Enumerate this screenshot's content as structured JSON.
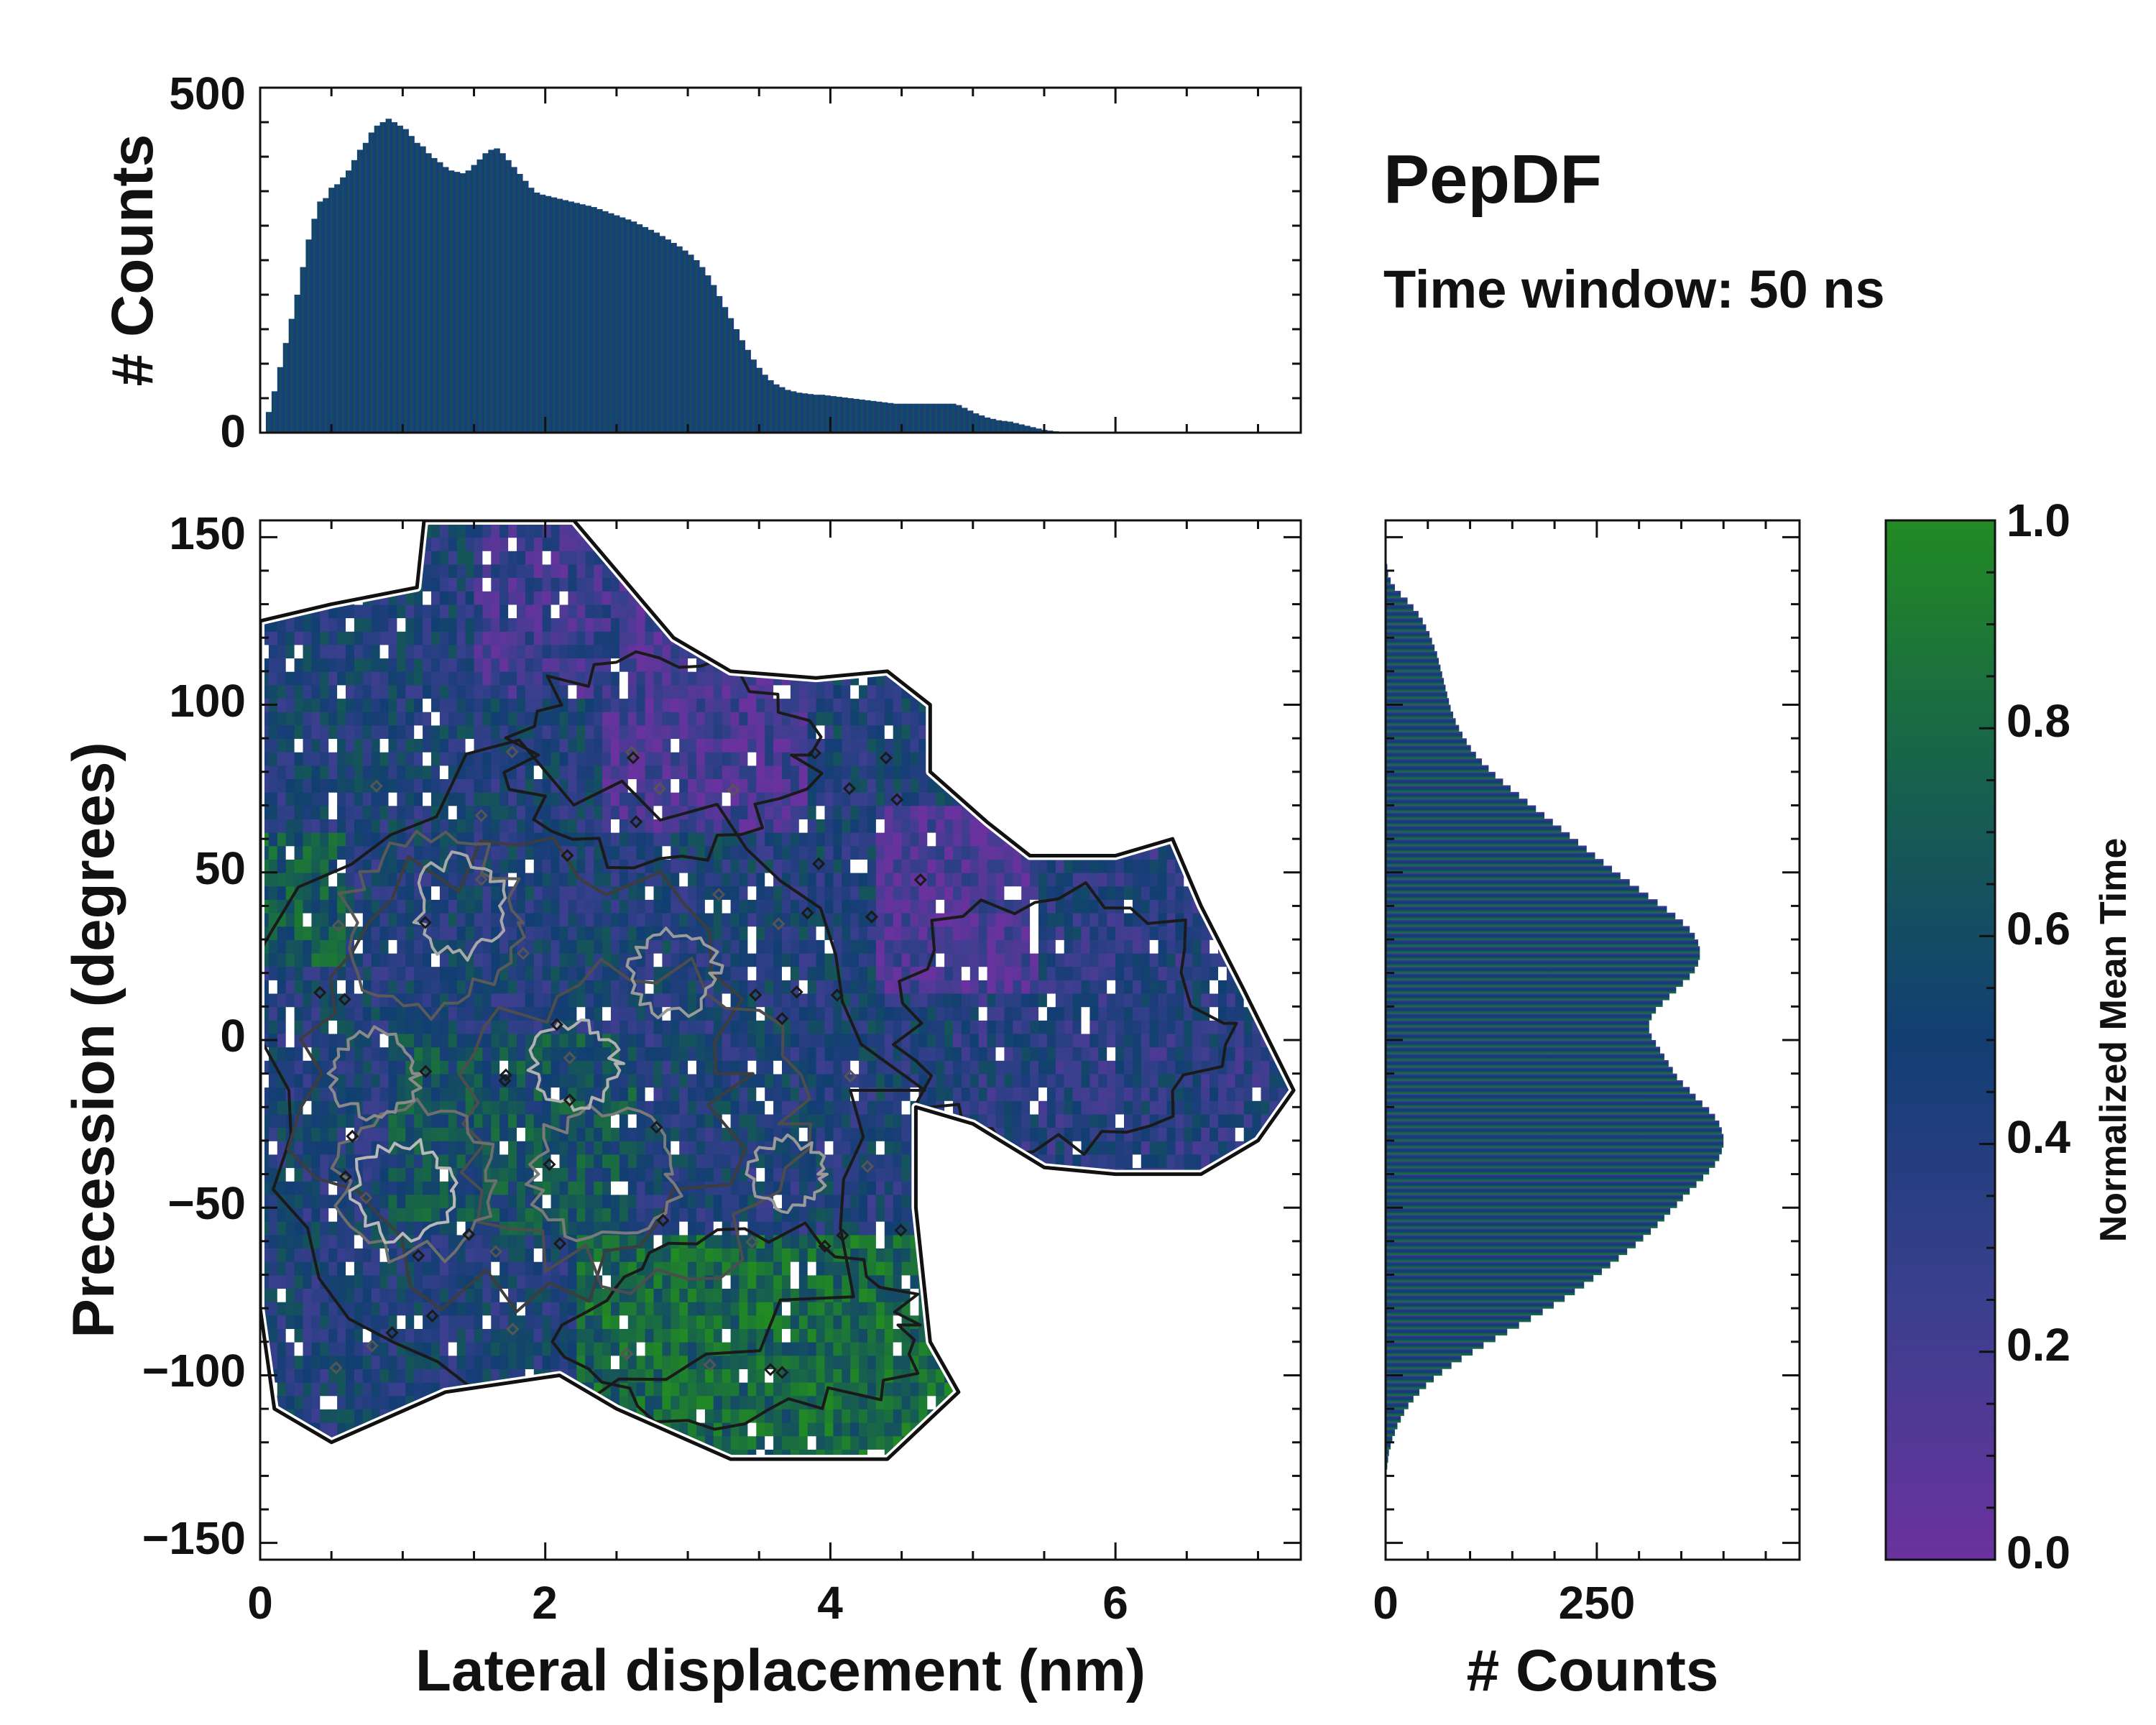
{
  "chart_data": {
    "type": "heatmap",
    "title": "PepDF",
    "subtitle": "Time window: 50 ns",
    "main": {
      "xlabel": "Lateral displacement (nm)",
      "ylabel": "Precession (degrees)",
      "xlim": [
        0,
        7.3
      ],
      "ylim": [
        -155,
        155
      ],
      "xticks": [
        0,
        2,
        4,
        6
      ],
      "yticks": [
        -150,
        -100,
        -50,
        0,
        50,
        100,
        150
      ],
      "xtick_labels": [
        "0",
        "2",
        "4",
        "6"
      ],
      "ytick_labels": [
        "−150",
        "−100",
        "−50",
        "0",
        "50",
        "100",
        "150"
      ],
      "region": [
        [
          0,
          125
        ],
        [
          0.5,
          130
        ],
        [
          1.1,
          135
        ],
        [
          1.15,
          155
        ],
        [
          2.2,
          155
        ],
        [
          2.5,
          140
        ],
        [
          2.9,
          120
        ],
        [
          3.3,
          110
        ],
        [
          3.9,
          108
        ],
        [
          4.4,
          110
        ],
        [
          4.7,
          100
        ],
        [
          4.7,
          80
        ],
        [
          5.1,
          65
        ],
        [
          5.4,
          55
        ],
        [
          6.0,
          55
        ],
        [
          6.4,
          60
        ],
        [
          6.6,
          40
        ],
        [
          6.9,
          15
        ],
        [
          7.25,
          -15
        ],
        [
          7.0,
          -30
        ],
        [
          6.6,
          -40
        ],
        [
          6.0,
          -40
        ],
        [
          5.5,
          -38
        ],
        [
          5.0,
          -25
        ],
        [
          4.6,
          -20
        ],
        [
          4.6,
          -50
        ],
        [
          4.7,
          -90
        ],
        [
          4.9,
          -105
        ],
        [
          4.4,
          -125
        ],
        [
          3.3,
          -125
        ],
        [
          2.5,
          -110
        ],
        [
          2.1,
          -100
        ],
        [
          1.3,
          -105
        ],
        [
          0.5,
          -120
        ],
        [
          0.1,
          -110
        ],
        [
          0,
          -80
        ]
      ]
    },
    "top_histogram": {
      "ylabel": "# Counts",
      "ylim": [
        0,
        500
      ],
      "yticks": [
        0,
        500
      ],
      "ytick_labels": [
        "0",
        "500"
      ],
      "bin_width": 0.04,
      "x_start": 0.04,
      "values": [
        30,
        60,
        95,
        130,
        165,
        200,
        240,
        280,
        310,
        335,
        340,
        355,
        360,
        370,
        380,
        395,
        410,
        420,
        435,
        445,
        450,
        455,
        450,
        445,
        440,
        430,
        420,
        415,
        405,
        398,
        392,
        385,
        380,
        378,
        376,
        380,
        388,
        396,
        405,
        410,
        412,
        405,
        395,
        385,
        375,
        365,
        355,
        348,
        345,
        343,
        341,
        339,
        337,
        335,
        333,
        331,
        329,
        327,
        324,
        321,
        318,
        315,
        312,
        309,
        306,
        302,
        298,
        294,
        290,
        285,
        280,
        275,
        270,
        264,
        258,
        250,
        240,
        228,
        214,
        198,
        182,
        166,
        150,
        134,
        120,
        106,
        94,
        84,
        76,
        70,
        66,
        62,
        60,
        58,
        57,
        56,
        55,
        55,
        54,
        53,
        52,
        51,
        50,
        49,
        48,
        47,
        46,
        45,
        44,
        43,
        42,
        42,
        42,
        42,
        42,
        42,
        42,
        42,
        42,
        42,
        42,
        40,
        36,
        32,
        28,
        25,
        22,
        20,
        18,
        17,
        16,
        14,
        12,
        10,
        8,
        6,
        4,
        3,
        2,
        1,
        0,
        0,
        0,
        0,
        0,
        0
      ]
    },
    "right_histogram": {
      "xlabel": "# Counts",
      "xlim": [
        0,
        490
      ],
      "xticks": [
        0,
        250
      ],
      "xtick_labels": [
        "0",
        "250"
      ],
      "bin_width": 2,
      "y_start": -130,
      "values": [
        1,
        2,
        3,
        4,
        6,
        8,
        11,
        14,
        18,
        22,
        27,
        33,
        40,
        48,
        57,
        67,
        78,
        90,
        103,
        116,
        130,
        144,
        158,
        172,
        186,
        199,
        212,
        224,
        235,
        246,
        256,
        266,
        276,
        286,
        296,
        305,
        314,
        322,
        330,
        337,
        345,
        352,
        360,
        368,
        376,
        383,
        390,
        395,
        398,
        400,
        400,
        398,
        395,
        390,
        383,
        375,
        367,
        360,
        352,
        345,
        340,
        335,
        330,
        325,
        320,
        315,
        312,
        312,
        315,
        320,
        328,
        336,
        344,
        352,
        360,
        366,
        370,
        372,
        372,
        370,
        366,
        360,
        352,
        343,
        333,
        322,
        311,
        300,
        289,
        278,
        268,
        258,
        248,
        238,
        228,
        218,
        208,
        198,
        188,
        178,
        168,
        158,
        148,
        139,
        130,
        122,
        114,
        107,
        101,
        96,
        91,
        87,
        83,
        80,
        77,
        75,
        73,
        71,
        69,
        67,
        65,
        63,
        61,
        58,
        55,
        52,
        48,
        44,
        39,
        33,
        26,
        18,
        11,
        6,
        3,
        2,
        1,
        0
      ]
    },
    "colorbar": {
      "label": "Normalized Mean Time",
      "range": [
        0,
        1
      ],
      "ticks": [
        0,
        0.2,
        0.4,
        0.6,
        0.8,
        1
      ],
      "tick_labels": [
        "0.0",
        "0.2",
        "0.4",
        "0.6",
        "0.8",
        "1.0"
      ],
      "colors": [
        "#6a329e",
        "#3a3f8e",
        "#123e73",
        "#17614d",
        "#228a23"
      ]
    }
  }
}
